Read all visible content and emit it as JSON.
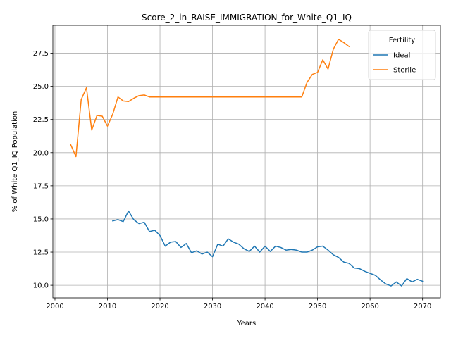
{
  "chart_data": {
    "type": "line",
    "title": "Score_2_in_RAISE_IMMIGRATION_for_White_Q1_IQ",
    "xlabel": "Years",
    "ylabel": "% of White Q1_IQ Population",
    "xlim": [
      1999.6,
      2073.4
    ],
    "ylim": [
      9.05,
      29.6
    ],
    "xticks": [
      2000,
      2010,
      2020,
      2030,
      2040,
      2050,
      2060,
      2070
    ],
    "xtick_labels": [
      "2000",
      "2010",
      "2020",
      "2030",
      "2040",
      "2050",
      "2060",
      "2070"
    ],
    "yticks": [
      10.0,
      12.5,
      15.0,
      17.5,
      20.0,
      22.5,
      25.0,
      27.5
    ],
    "ytick_labels": [
      "10.0",
      "12.5",
      "15.0",
      "17.5",
      "20.0",
      "22.5",
      "25.0",
      "27.5"
    ],
    "grid": true,
    "legend": {
      "title": "Fertility",
      "placement": "upper-right"
    },
    "series": [
      {
        "name": "Ideal",
        "color": "#1f77b4",
        "x": [
          2011,
          2012,
          2013,
          2014,
          2015,
          2016,
          2017,
          2018,
          2019,
          2020,
          2021,
          2022,
          2023,
          2024,
          2025,
          2026,
          2027,
          2028,
          2029,
          2030,
          2031,
          2032,
          2033,
          2034,
          2035,
          2036,
          2037,
          2038,
          2039,
          2040,
          2041,
          2042,
          2043,
          2044,
          2045,
          2046,
          2047,
          2048,
          2049,
          2050,
          2051,
          2052,
          2053,
          2054,
          2055,
          2056,
          2057,
          2058,
          2059,
          2060,
          2061,
          2062,
          2063,
          2064,
          2065,
          2066,
          2067,
          2068,
          2069,
          2070
        ],
        "y": [
          14.85,
          14.95,
          14.8,
          15.6,
          14.95,
          14.65,
          14.75,
          14.05,
          14.15,
          13.75,
          12.95,
          13.25,
          13.3,
          12.85,
          13.15,
          12.45,
          12.6,
          12.35,
          12.5,
          12.15,
          13.1,
          12.95,
          13.5,
          13.25,
          13.1,
          12.75,
          12.55,
          12.95,
          12.5,
          12.95,
          12.55,
          12.95,
          12.85,
          12.65,
          12.7,
          12.65,
          12.5,
          12.5,
          12.65,
          12.9,
          12.95,
          12.65,
          12.3,
          12.1,
          11.75,
          11.65,
          11.3,
          11.25,
          11.05,
          10.9,
          10.75,
          10.4,
          10.1,
          9.95,
          10.25,
          9.95,
          10.5,
          10.25,
          10.45,
          10.3
        ]
      },
      {
        "name": "Sterile",
        "color": "#ff7f0e",
        "x": [
          2003,
          2004,
          2005,
          2006,
          2007,
          2008,
          2009,
          2010,
          2011,
          2012,
          2013,
          2014,
          2015,
          2016,
          2017,
          2018,
          2019,
          2020,
          2021,
          2022,
          2023,
          2024,
          2025,
          2026,
          2027,
          2028,
          2029,
          2030,
          2031,
          2032,
          2033,
          2034,
          2035,
          2036,
          2037,
          2038,
          2039,
          2040,
          2041,
          2042,
          2043,
          2044,
          2045,
          2046,
          2047,
          2048,
          2049,
          2050,
          2051,
          2052,
          2053,
          2054,
          2055,
          2056
        ],
        "y": [
          20.6,
          19.7,
          24.0,
          24.9,
          21.7,
          22.8,
          22.75,
          22.0,
          22.9,
          24.2,
          23.9,
          23.85,
          24.1,
          24.3,
          24.35,
          24.2,
          24.2,
          24.2,
          24.2,
          24.2,
          24.2,
          24.2,
          24.2,
          24.2,
          24.2,
          24.2,
          24.2,
          24.2,
          24.2,
          24.2,
          24.2,
          24.2,
          24.2,
          24.2,
          24.2,
          24.2,
          24.2,
          24.2,
          24.2,
          24.2,
          24.2,
          24.2,
          24.2,
          24.2,
          24.2,
          25.3,
          25.9,
          26.05,
          27.0,
          26.3,
          27.8,
          28.55,
          28.3,
          28.0
        ]
      }
    ]
  }
}
